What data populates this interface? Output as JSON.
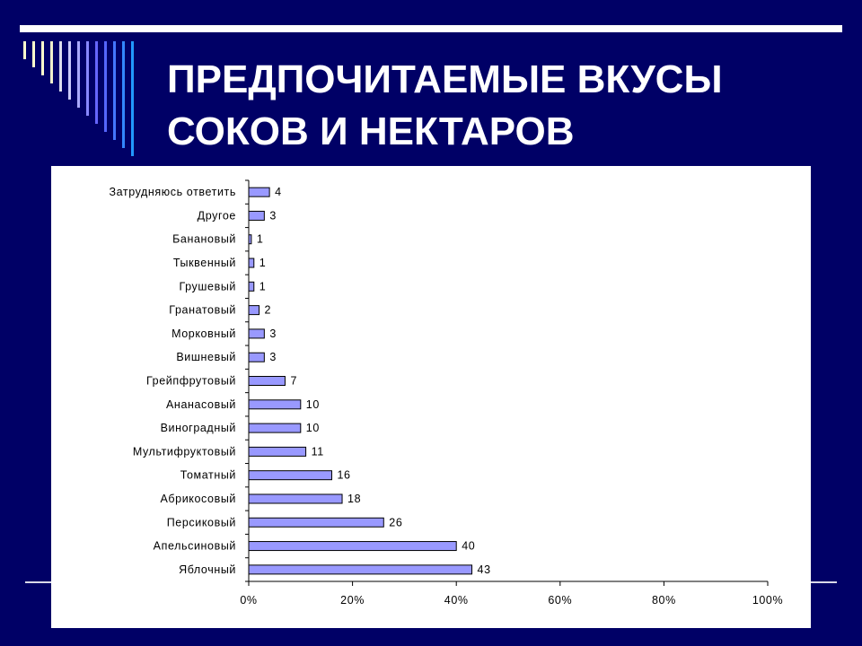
{
  "slide": {
    "title_line1": "ПРЕДПОЧИТАЕМЫЕ ВКУСЫ",
    "title_line2": "СОКОВ И НЕКТАРОВ",
    "colors": {
      "background": "#000066",
      "title": "#ffffff",
      "bar_fill": "#9999ff",
      "bar_stroke": "#000000"
    }
  },
  "chart_data": {
    "type": "bar",
    "orientation": "horizontal",
    "categories": [
      "Затрудняюсь ответить",
      "Другое",
      "Банановый",
      "Тыквенный",
      "Грушевый",
      "Гранатовый",
      "Морковный",
      "Вишневый",
      "Грейпфрутовый",
      "Ананасовый",
      "Виноградный",
      "Мультифруктовый",
      "Томатный",
      "Абрикосовый",
      "Персиковый",
      "Апельсиновый",
      "Яблочный"
    ],
    "values": [
      4,
      3,
      0.5,
      1,
      1,
      2,
      3,
      3,
      7,
      10,
      10,
      11,
      16,
      18,
      26,
      40,
      43
    ],
    "value_labels": [
      "4",
      "3",
      "1",
      "1",
      "1",
      "2",
      "3",
      "3",
      "7",
      "10",
      "10",
      "11",
      "16",
      "18",
      "26",
      "40",
      "43"
    ],
    "xlim": [
      0,
      100
    ],
    "x_ticks": [
      0,
      20,
      40,
      60,
      80,
      100
    ],
    "x_tick_labels": [
      "0%",
      "20%",
      "40%",
      "60%",
      "80%",
      "100%"
    ],
    "grid": false,
    "legend": "none"
  }
}
